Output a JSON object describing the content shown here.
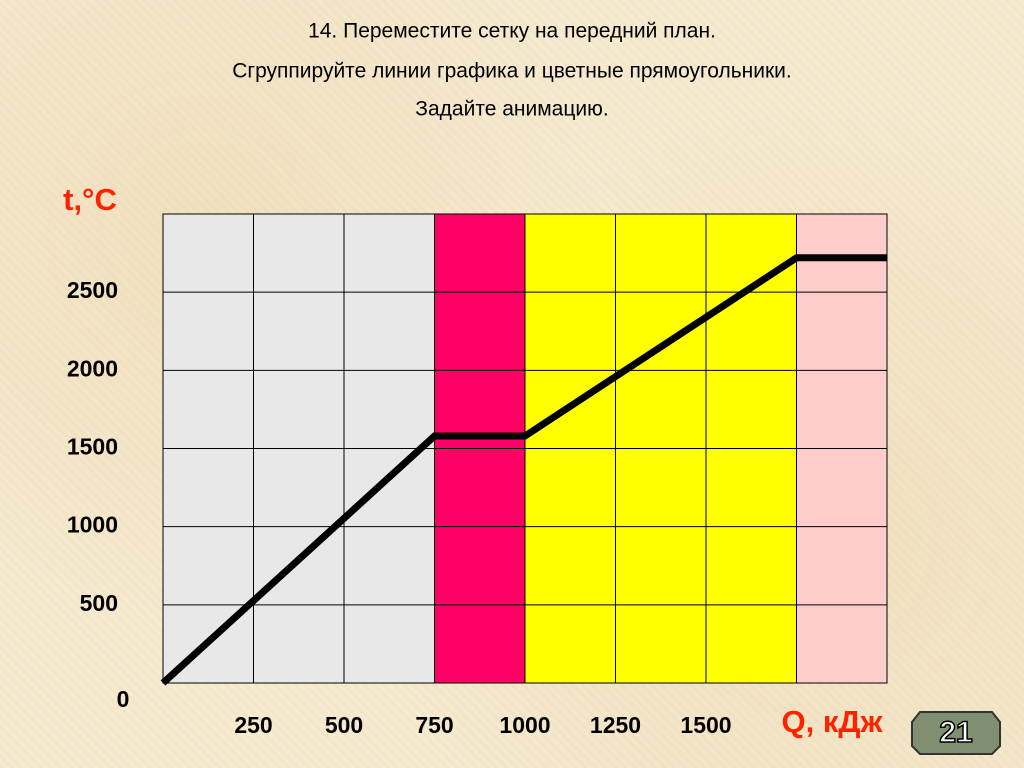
{
  "header": {
    "lines": [
      "14. Переместите сетку на передний план.",
      "Сгруппируйте линии графика и цветные прямоугольники.",
      "Задайте анимацию."
    ]
  },
  "slide_number": "21",
  "chart_data": {
    "type": "line",
    "y_label": "t,°C",
    "x_label": "Q, кДж",
    "x": [
      0,
      750,
      1000,
      1750,
      2000
    ],
    "values": [
      0,
      1580,
      1580,
      2720,
      2720
    ],
    "color": "#000000",
    "xlim": [
      0,
      2000
    ],
    "ylim": [
      0,
      3000
    ],
    "xticks": [
      250,
      500,
      750,
      1000,
      1250,
      1500
    ],
    "yticks": [
      0,
      500,
      1000,
      1500,
      2000,
      2500
    ],
    "grid": true,
    "bands": [
      {
        "from": 0,
        "to": 750,
        "color": "#e8e8e8"
      },
      {
        "from": 750,
        "to": 1000,
        "color": "#ff0066"
      },
      {
        "from": 1000,
        "to": 1750,
        "color": "#ffff00"
      },
      {
        "from": 1750,
        "to": 2000,
        "color": "#ffcccc"
      }
    ]
  }
}
